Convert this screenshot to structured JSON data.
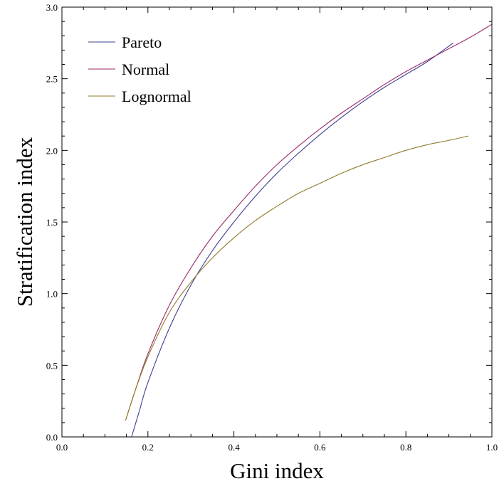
{
  "chart_data": {
    "type": "line",
    "title": "",
    "xlabel": "Gini index",
    "ylabel": "Stratification index",
    "xlim": [
      0.0,
      1.0
    ],
    "ylim": [
      0.0,
      3.0
    ],
    "xticks": [
      0.0,
      0.2,
      0.4,
      0.6,
      0.8,
      1.0
    ],
    "yticks": [
      0.0,
      0.5,
      1.0,
      1.5,
      2.0,
      2.5,
      3.0
    ],
    "xtick_labels": [
      "0.0",
      "0.2",
      "0.4",
      "0.6",
      "0.8",
      "1.0"
    ],
    "ytick_labels": [
      "0.0",
      "0.5",
      "1.0",
      "1.5",
      "2.0",
      "2.5",
      "3.0"
    ],
    "grid": false,
    "legend_position": "top-left",
    "series": [
      {
        "name": "Pareto",
        "color": "#3f3f8f",
        "points": [
          [
            0.162,
            0.0
          ],
          [
            0.18,
            0.18
          ],
          [
            0.2,
            0.38
          ],
          [
            0.25,
            0.76
          ],
          [
            0.3,
            1.06
          ],
          [
            0.35,
            1.3
          ],
          [
            0.4,
            1.5
          ],
          [
            0.45,
            1.68
          ],
          [
            0.5,
            1.84
          ],
          [
            0.55,
            1.98
          ],
          [
            0.6,
            2.11
          ],
          [
            0.65,
            2.23
          ],
          [
            0.7,
            2.34
          ],
          [
            0.75,
            2.44
          ],
          [
            0.8,
            2.53
          ],
          [
            0.85,
            2.62
          ],
          [
            0.91,
            2.75
          ]
        ]
      },
      {
        "name": "Normal",
        "color": "#9a2a6a",
        "points": [
          [
            0.148,
            0.115
          ],
          [
            0.17,
            0.32
          ],
          [
            0.2,
            0.58
          ],
          [
            0.25,
            0.92
          ],
          [
            0.3,
            1.18
          ],
          [
            0.35,
            1.4
          ],
          [
            0.4,
            1.58
          ],
          [
            0.45,
            1.75
          ],
          [
            0.5,
            1.9
          ],
          [
            0.55,
            2.03
          ],
          [
            0.6,
            2.15
          ],
          [
            0.65,
            2.26
          ],
          [
            0.7,
            2.36
          ],
          [
            0.75,
            2.46
          ],
          [
            0.8,
            2.55
          ],
          [
            0.85,
            2.63
          ],
          [
            0.9,
            2.71
          ],
          [
            0.95,
            2.79
          ],
          [
            1.0,
            2.88
          ]
        ]
      },
      {
        "name": "Lognormal",
        "color": "#8f7a2a",
        "points": [
          [
            0.148,
            0.115
          ],
          [
            0.17,
            0.32
          ],
          [
            0.2,
            0.56
          ],
          [
            0.25,
            0.87
          ],
          [
            0.3,
            1.08
          ],
          [
            0.35,
            1.25
          ],
          [
            0.4,
            1.39
          ],
          [
            0.45,
            1.51
          ],
          [
            0.5,
            1.61
          ],
          [
            0.55,
            1.7
          ],
          [
            0.6,
            1.77
          ],
          [
            0.65,
            1.84
          ],
          [
            0.7,
            1.9
          ],
          [
            0.75,
            1.95
          ],
          [
            0.8,
            2.0
          ],
          [
            0.85,
            2.04
          ],
          [
            0.9,
            2.07
          ],
          [
            0.945,
            2.1
          ]
        ]
      }
    ]
  }
}
